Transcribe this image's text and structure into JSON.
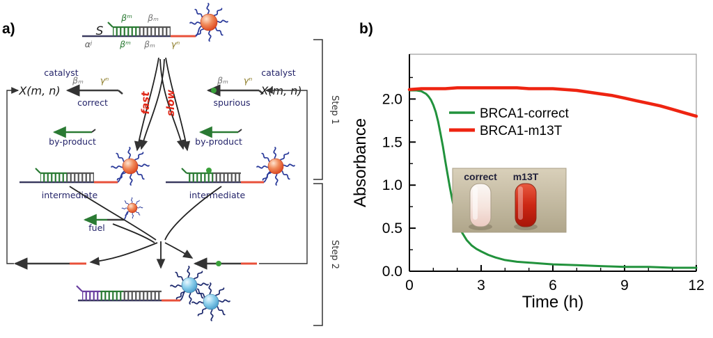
{
  "panels": {
    "a_label": "a)",
    "b_label": "b)"
  },
  "diagram": {
    "substrate_name": "S",
    "domain_labels": {
      "beta_sup": "βᵐ",
      "beta_sub": "βₘ",
      "alpha": "αʲ",
      "gamma": "γⁿ"
    },
    "left_catalyst": {
      "title": "catalyst",
      "formula": "X(m, n)",
      "tag": "correct"
    },
    "right_catalyst": {
      "title": "catalyst",
      "formula": "X(m, n)",
      "tag": "spurious"
    },
    "fast_label": "fast",
    "slow_label": "slow",
    "byproduct_label": "by-product",
    "intermediate_label": "intermediate",
    "fuel_label": "fuel",
    "step1_label": "Step 1",
    "step2_label": "Step 2"
  },
  "chart_data": {
    "type": "line",
    "title": "",
    "xlabel": "Time (h)",
    "ylabel": "Absorbance",
    "xlim": [
      0,
      12
    ],
    "ylim": [
      0,
      2.52
    ],
    "x_ticks": [
      0,
      3,
      6,
      9,
      12
    ],
    "x_tick_labels": [
      "0",
      "3",
      "6",
      "9",
      "12"
    ],
    "y_ticks": [
      0.0,
      0.5,
      1.0,
      1.5,
      2.0
    ],
    "y_tick_labels": [
      "0.0",
      "0.5",
      "1.0",
      "1.5",
      "2.0"
    ],
    "grid": false,
    "legend_position": "upper center",
    "series": [
      {
        "name": "BRCA1-correct",
        "color": "#21923c",
        "x": [
          0,
          0.3,
          0.5,
          0.7,
          0.8,
          0.9,
          1.0,
          1.1,
          1.2,
          1.3,
          1.4,
          1.5,
          1.6,
          1.7,
          1.8,
          1.9,
          2.0,
          2.2,
          2.4,
          2.6,
          2.8,
          3.0,
          3.3,
          3.6,
          4.0,
          4.5,
          5.0,
          5.5,
          6.0,
          7.0,
          8.0,
          9.0,
          10.0,
          11.0,
          12.0
        ],
        "y": [
          2.1,
          2.1,
          2.09,
          2.06,
          2.03,
          1.99,
          1.93,
          1.85,
          1.74,
          1.6,
          1.45,
          1.28,
          1.12,
          0.96,
          0.82,
          0.7,
          0.6,
          0.45,
          0.36,
          0.3,
          0.26,
          0.23,
          0.19,
          0.16,
          0.13,
          0.11,
          0.1,
          0.09,
          0.08,
          0.07,
          0.06,
          0.05,
          0.05,
          0.04,
          0.04
        ]
      },
      {
        "name": "BRCA1-m13T",
        "color": "#ee2411",
        "x": [
          0,
          0.5,
          1,
          1.5,
          2,
          2.5,
          3,
          3.5,
          4,
          4.5,
          5,
          5.5,
          6,
          6.5,
          7,
          7.5,
          8,
          8.5,
          9,
          9.5,
          10,
          10.5,
          11,
          11.5,
          12
        ],
        "y": [
          2.11,
          2.12,
          2.12,
          2.12,
          2.13,
          2.13,
          2.13,
          2.13,
          2.13,
          2.13,
          2.12,
          2.12,
          2.12,
          2.11,
          2.1,
          2.08,
          2.06,
          2.04,
          2.01,
          1.98,
          1.95,
          1.92,
          1.88,
          1.84,
          1.8
        ]
      }
    ],
    "inset": {
      "labels": [
        "correct",
        "m13T"
      ]
    }
  }
}
